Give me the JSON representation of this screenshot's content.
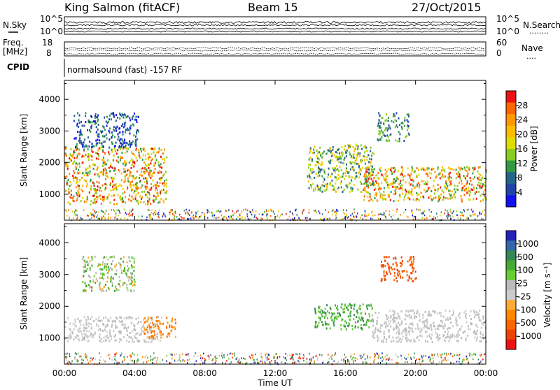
{
  "header": {
    "station": "King Salmon (fitACF)",
    "beam": "Beam 15",
    "date": "27/Oct/2015"
  },
  "top_panel": {
    "nsky_label": "N.Sky",
    "nsearch_label": "N.Search",
    "nsearch_dots": "........",
    "left_top": "10^5",
    "left_bottom": "10^0",
    "right_top": "10^5",
    "right_bottom": "10^0"
  },
  "freq_panel": {
    "label_line1": "Freq.",
    "label_line2": "[MHz]",
    "left_top": "18",
    "left_bottom": "8",
    "nave_label": "Nave",
    "nave_dots": "....",
    "right_top": "60",
    "right_bottom": "0"
  },
  "cpid": {
    "label": "CPID",
    "value": "normalsound (fast) -157 RF"
  },
  "time_axis": {
    "ticks": [
      "00:00",
      "04:00",
      "08:00",
      "12:00",
      "16:00",
      "20:00",
      "00:00"
    ],
    "label": "Time UT"
  },
  "power_colorbar": {
    "ticks": [
      "28",
      "24",
      "20",
      "16",
      "12",
      "8",
      "4"
    ],
    "label": "Power [dB]",
    "colors": [
      "#ee1111",
      "#ff6600",
      "#ff9900",
      "#ffbb00",
      "#dddd00",
      "#88cc22",
      "#339944",
      "#226688",
      "#2244aa",
      "#1111ee"
    ]
  },
  "velocity_colorbar": {
    "ticks": [
      "1000",
      "500",
      "100",
      "25",
      "-25",
      "-100",
      "-500",
      "-1000"
    ],
    "label": "Velocity [m s⁻¹]",
    "colors": [
      "#2222bb",
      "#3366aa",
      "#338855",
      "#44aa33",
      "#66cc33",
      "#bbbbbb",
      "#cccccc",
      "#ffaa33",
      "#ff8800",
      "#ff6600",
      "#ee4400",
      "#ee1111"
    ]
  },
  "chart_data": [
    {
      "type": "heatmap",
      "title": "Power",
      "xlabel": "Time UT",
      "ylabel": "Slant Range [km]",
      "xlim": [
        "00:00",
        "24:00"
      ],
      "ylim": [
        180,
        4600
      ],
      "yticks": [
        1000,
        2000,
        3000,
        4000
      ],
      "colorbar_label": "Power [dB]",
      "colorbar_range": [
        0,
        32
      ],
      "regions": [
        {
          "t_start": 0.0,
          "t_end": 5.8,
          "range_min": 700,
          "range_max": 2500,
          "level": "medium-high"
        },
        {
          "t_start": 0.5,
          "t_end": 4.2,
          "range_min": 2500,
          "range_max": 3600,
          "level": "low"
        },
        {
          "t_start": 13.8,
          "t_end": 17.6,
          "range_min": 1100,
          "range_max": 2600,
          "level": "medium"
        },
        {
          "t_start": 17.0,
          "t_end": 24.0,
          "range_min": 800,
          "range_max": 1900,
          "level": "medium-high"
        },
        {
          "t_start": 17.8,
          "t_end": 19.6,
          "range_min": 2700,
          "range_max": 3600,
          "level": "low-medium"
        }
      ]
    },
    {
      "type": "heatmap",
      "title": "Velocity",
      "xlabel": "Time UT",
      "ylabel": "Slant Range [km]",
      "xlim": [
        "00:00",
        "24:00"
      ],
      "ylim": [
        180,
        4600
      ],
      "yticks": [
        1000,
        2000,
        3000,
        4000
      ],
      "colorbar_label": "Velocity [m s⁻¹]",
      "colorbar_range": [
        -1000,
        1000
      ],
      "regions": [
        {
          "t_start": 0.0,
          "t_end": 5.5,
          "range_min": 900,
          "range_max": 1700,
          "velocity": "near zero (grey)"
        },
        {
          "t_start": 1.0,
          "t_end": 4.0,
          "range_min": 2500,
          "range_max": 3600,
          "velocity": "-100 to 100"
        },
        {
          "t_start": 4.5,
          "t_end": 6.3,
          "range_min": 1000,
          "range_max": 1700,
          "velocity": "-100 to -500"
        },
        {
          "t_start": 14.2,
          "t_end": 17.6,
          "range_min": 1300,
          "range_max": 2100,
          "velocity": "100 to 500"
        },
        {
          "t_start": 18.0,
          "t_end": 20.0,
          "range_min": 2800,
          "range_max": 3600,
          "velocity": "-500 to -1000"
        },
        {
          "t_start": 17.5,
          "t_end": 24.0,
          "range_min": 900,
          "range_max": 1900,
          "velocity": "near zero (grey)"
        }
      ]
    }
  ]
}
